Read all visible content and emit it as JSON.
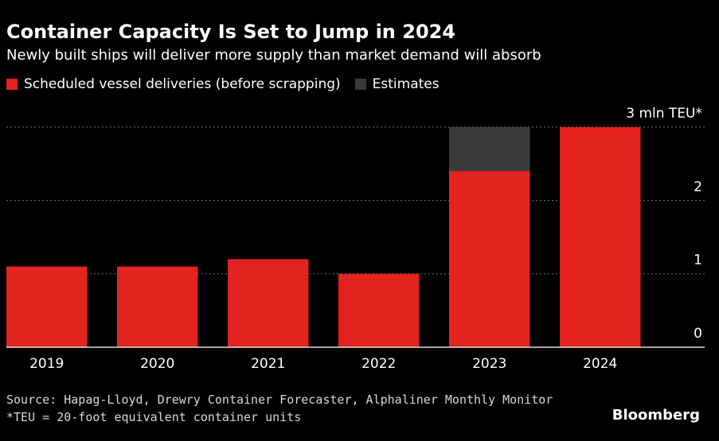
{
  "header": {
    "title": "Container Capacity Is Set to Jump in 2024",
    "subtitle": "Newly built ships will deliver more supply than market demand will absorb"
  },
  "legend": {
    "items": [
      {
        "label": "Scheduled vessel deliveries (before scrapping)",
        "color": "#e3231f"
      },
      {
        "label": "Estimates",
        "color": "#3a3a3a"
      }
    ]
  },
  "footer": {
    "source": "Source: Hapag-Lloyd, Drewry Container Forecaster, Alphaliner Monthly Monitor",
    "note": "*TEU = 20-foot equivalent container units",
    "brand": "Bloomberg"
  },
  "chart_data": {
    "type": "bar",
    "title": "Container Capacity Is Set to Jump in 2024",
    "categories": [
      "2019",
      "2020",
      "2021",
      "2022",
      "2023",
      "2024"
    ],
    "series": [
      {
        "name": "Scheduled vessel deliveries (before scrapping)",
        "color": "#e3231f",
        "values": [
          1.1,
          1.1,
          1.2,
          1.0,
          2.4,
          3.0
        ]
      },
      {
        "name": "Estimates",
        "color": "#3a3a3a",
        "values": [
          null,
          null,
          null,
          null,
          3.0,
          null
        ]
      }
    ],
    "yticks": [
      0,
      1,
      2,
      3
    ],
    "ytick_labels": [
      "0",
      "1",
      "2",
      "3 mln TEU*"
    ],
    "ylim": [
      0,
      3
    ],
    "ylabel": "mln TEU",
    "grid": true,
    "legend_position": "top-left"
  }
}
